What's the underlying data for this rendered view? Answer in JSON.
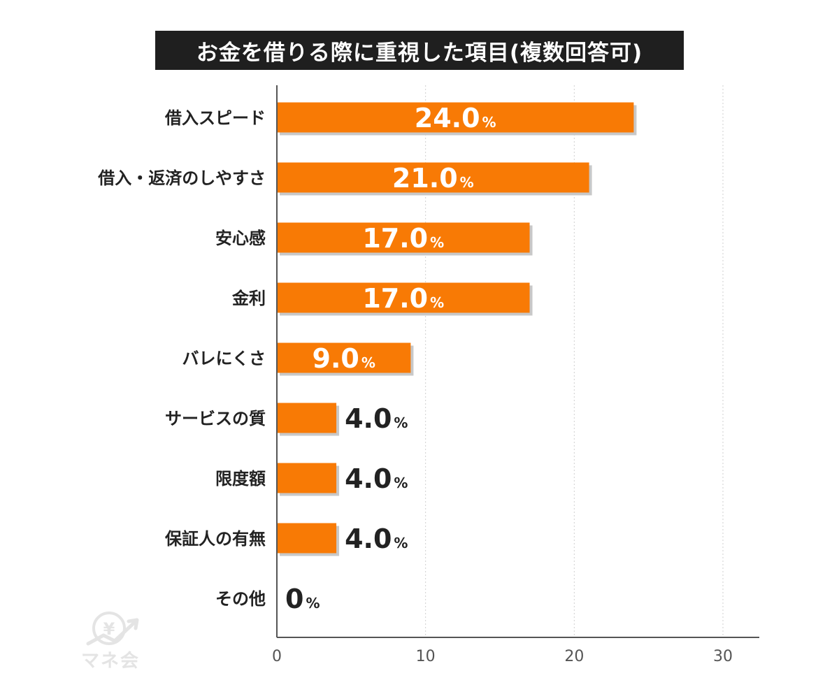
{
  "chart_data": {
    "type": "bar",
    "orientation": "horizontal",
    "title": "お金を借りる際に重視した項目(複数回答可)",
    "categories": [
      "借入スピード",
      "借入・返済のしやすさ",
      "安心感",
      "金利",
      "バレにくさ",
      "サービスの質",
      "限度額",
      "保証人の有無",
      "その他"
    ],
    "values": [
      24.0,
      21.0,
      17.0,
      17.0,
      9.0,
      4.0,
      4.0,
      4.0,
      0
    ],
    "value_labels": [
      "24.0",
      "21.0",
      "17.0",
      "17.0",
      "9.0",
      "4.0",
      "4.0",
      "4.0",
      "0"
    ],
    "unit": "%",
    "xlim": [
      0,
      30
    ],
    "xticks": [
      0,
      10,
      20,
      30
    ],
    "xtick_labels": [
      "0",
      "10",
      "20",
      "30"
    ],
    "grid": "vertical dotted",
    "bar_color": "#f87a05",
    "shadow_color": "#c8c8c8"
  },
  "logo": {
    "text": "マネ会",
    "symbol": "¥"
  }
}
